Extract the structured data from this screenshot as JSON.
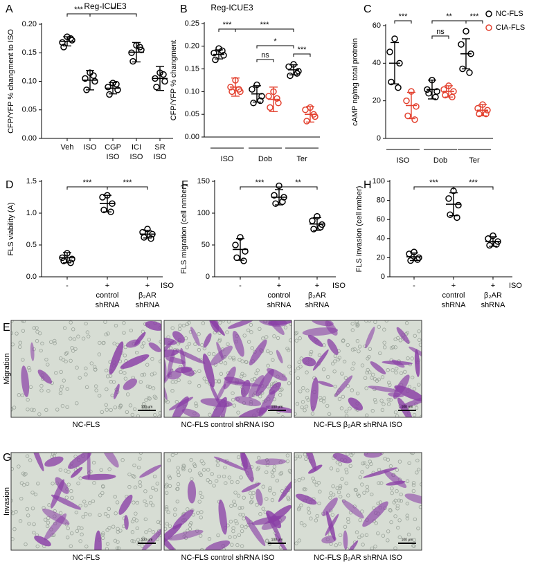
{
  "chart_data": [
    {
      "type": "dot",
      "panel": "A",
      "title": "Reg-ICUE3",
      "y_label": "CFP/YFP % changment to ISO",
      "ylim": [
        0,
        0.2
      ],
      "yticks": [
        {
          "value": 0,
          "label": "0.00"
        },
        0.05,
        {
          "value": 0.1,
          "label": "0.10"
        },
        0.15,
        {
          "value": 0.2,
          "label": "0.20"
        }
      ],
      "categories": [
        [
          "Veh"
        ],
        [
          "ISO"
        ],
        [
          "CGP",
          "ISO"
        ],
        [
          "ICI",
          "ISO"
        ],
        [
          "SR",
          "ISO"
        ]
      ],
      "series": [
        {
          "color": "#000000",
          "points": [
            [
              0.178,
              0.168,
              0.172,
              0.16,
              0.175
            ],
            [
              0.115,
              0.105,
              0.1,
              0.085,
              0.11
            ],
            [
              0.097,
              0.09,
              0.085,
              0.077,
              0.095
            ],
            [
              0.163,
              0.15,
              0.155,
              0.135,
              0.16
            ],
            [
              0.115,
              0.105,
              0.1,
              0.09,
              0.112
            ]
          ],
          "mean": [
            0.17,
            0.102,
            0.088,
            0.151,
            0.105
          ],
          "sd": [
            0.008,
            0.017,
            0.01,
            0.017,
            0.021
          ]
        }
      ],
      "significance": [
        "***",
        "**"
      ]
    },
    {
      "type": "dot",
      "panel": "B",
      "title": "Reg-ICUE3",
      "y_label": "CFP/YFP % changment",
      "ylim": [
        0,
        0.25
      ],
      "yticks": [
        {
          "value": 0,
          "label": "0.00"
        },
        0.05,
        {
          "value": 0.1,
          "label": "0.10"
        },
        0.15,
        {
          "value": 0.2,
          "label": "0.20"
        },
        0.25
      ],
      "categories": [
        [
          "ISO"
        ],
        [
          "Dob"
        ],
        [
          "Ter"
        ]
      ],
      "series": [
        {
          "color": "#000000",
          "points": [
            [
              0.195,
              0.185,
              0.18,
              0.17,
              0.19
            ],
            [
              0.115,
              0.105,
              0.09,
              0.075,
              0.08
            ],
            [
              0.16,
              0.155,
              0.145,
              0.135,
              0.14
            ]
          ],
          "mean": [
            0.182,
            0.095,
            0.148
          ],
          "sd": [
            0.01,
            0.018,
            0.011
          ]
        },
        {
          "color": "#e3412f",
          "points": [
            [
              0.125,
              0.11,
              0.1,
              0.1,
              0.105
            ],
            [
              0.1,
              0.09,
              0.075,
              0.065,
              0.085
            ],
            [
              0.065,
              0.06,
              0.045,
              0.035,
              0.05
            ]
          ],
          "mean": [
            0.11,
            0.083,
            0.05
          ],
          "sd": [
            0.02,
            0.027,
            0.017
          ]
        }
      ],
      "significance": [
        "***",
        "***",
        "ns",
        "*",
        "***"
      ]
    },
    {
      "type": "dot",
      "panel": "C",
      "y_label": "cAMP ng/mg total protrein",
      "ylim": [
        0,
        60
      ],
      "yticks": [
        0,
        20,
        40,
        60
      ],
      "legend": "top-right",
      "categories": [
        [
          "ISO"
        ],
        [
          "Dob"
        ],
        [
          "Ter"
        ]
      ],
      "series": [
        {
          "name": "NC-FLS",
          "color": "#000000",
          "points": [
            [
              53,
              46,
              40,
              30,
              27
            ],
            [
              31,
              26,
              25,
              24,
              22
            ],
            [
              57,
              50,
              45,
              37,
              35
            ]
          ],
          "mean": [
            40,
            26,
            45
          ],
          "sd": [
            11,
            5,
            8
          ]
        },
        {
          "name": "CIA-FLS",
          "color": "#e3412f",
          "points": [
            [
              25,
              20,
              17,
              12,
              10
            ],
            [
              28,
              26,
              25,
              23,
              22
            ],
            [
              18,
              16,
              15,
              13,
              13
            ]
          ],
          "mean": [
            17.5,
            25,
            15
          ],
          "sd": [
            7,
            3,
            3
          ]
        }
      ],
      "significance": [
        "***",
        "ns",
        "**",
        "***"
      ]
    },
    {
      "type": "dot",
      "panel": "D",
      "y_label": "FLS viability (A)",
      "treatment_label": "ISO",
      "ylim": [
        0,
        1.5
      ],
      "yticks": [
        {
          "value": 0,
          "label": "0.0"
        },
        0.5,
        {
          "value": 1,
          "label": "1.0"
        },
        1.5
      ],
      "categories": [
        [
          "-"
        ],
        [
          "+",
          "control",
          "shRNA"
        ],
        [
          "+",
          "β₂AR",
          "shRNA"
        ]
      ],
      "series": [
        {
          "color": "#000000",
          "points": [
            [
              0.37,
              0.3,
              0.28,
              0.25,
              0.22
            ],
            [
              1.28,
              1.25,
              1.15,
              1.05,
              1.02
            ],
            [
              0.75,
              0.7,
              0.67,
              0.62,
              0.6
            ]
          ],
          "mean": [
            0.3,
            1.15,
            0.67
          ],
          "sd": [
            0.08,
            0.13,
            0.06
          ]
        }
      ],
      "significance": [
        "***",
        "***"
      ]
    },
    {
      "type": "dot",
      "panel": "F",
      "y_label": "FLS migration (cell nmber)",
      "treatment_label": "ISO",
      "ylim": [
        0,
        150
      ],
      "yticks": [
        0,
        50,
        100,
        150
      ],
      "categories": [
        [
          "-"
        ],
        [
          "+",
          "control",
          "shRNA"
        ],
        [
          "+",
          "β₂AR",
          "shRNA"
        ]
      ],
      "series": [
        {
          "color": "#000000",
          "points": [
            [
              62,
              50,
              40,
              30,
              25
            ],
            [
              143,
              128,
              125,
              115,
              118
            ],
            [
              95,
              88,
              82,
              75,
              78
            ]
          ],
          "mean": [
            43,
            125,
            83
          ],
          "sd": [
            17,
            12,
            10
          ]
        }
      ],
      "significance": [
        "***",
        "**"
      ]
    },
    {
      "type": "dot",
      "panel": "H",
      "y_label": "FLS invasion (cell nmber)",
      "treatment_label": "ISO",
      "ylim": [
        0,
        100
      ],
      "yticks": [
        0,
        20,
        40,
        60,
        80,
        100
      ],
      "categories": [
        [
          "-"
        ],
        [
          "+",
          "control",
          "shRNA"
        ],
        [
          "+",
          "β₂AR",
          "shRNA"
        ]
      ],
      "series": [
        {
          "color": "#000000",
          "points": [
            [
              26,
              24,
              20,
              17,
              18
            ],
            [
              90,
              82,
              75,
              65,
              62
            ],
            [
              43,
              40,
              37,
              33,
              34
            ]
          ],
          "mean": [
            21,
            76,
            37
          ],
          "sd": [
            4,
            12,
            5
          ]
        }
      ],
      "significance": [
        "***",
        "***"
      ]
    }
  ],
  "image_panels": [
    {
      "panel": "E",
      "row_label": "Migration",
      "captions": [
        "NC-FLS",
        "NC-FLS control shRNA ISO",
        "NC-FLS β₂AR shRNA ISO"
      ],
      "scale_bar": "100 μm"
    },
    {
      "panel": "G",
      "row_label": "Invasion",
      "captions": [
        "NC-FLS",
        "NC-FLS control shRNA ISO",
        "NC-FLS β₂AR shRNA ISO"
      ],
      "scale_bar": "100 μm"
    }
  ]
}
